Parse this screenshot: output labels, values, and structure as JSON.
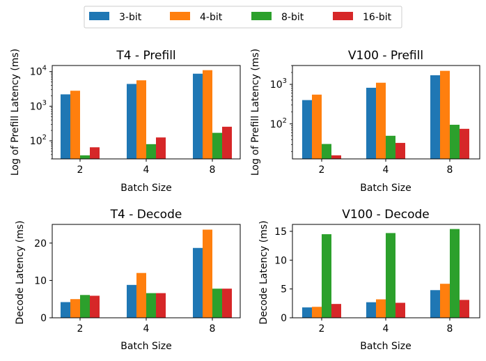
{
  "legend": {
    "entries": [
      {
        "name": "3-bit",
        "color": "#1f77b4"
      },
      {
        "name": "4-bit",
        "color": "#ff7f0e"
      },
      {
        "name": "8-bit",
        "color": "#2ca02c"
      },
      {
        "name": "16-bit",
        "color": "#d62728"
      }
    ]
  },
  "chart_data": [
    {
      "id": "t4-prefill",
      "type": "bar",
      "title": "T4 - Prefill",
      "xlabel": "Batch Size",
      "ylabel": "Log of Prefill Latency (ms)",
      "yscale": "log",
      "ylim": [
        30,
        15000
      ],
      "categories": [
        "2",
        "4",
        "8"
      ],
      "series": [
        {
          "name": "3-bit",
          "values": [
            2200,
            4400,
            8700
          ]
        },
        {
          "name": "4-bit",
          "values": [
            2800,
            5600,
            11000
          ]
        },
        {
          "name": "8-bit",
          "values": [
            38,
            80,
            170
          ]
        },
        {
          "name": "16-bit",
          "values": [
            65,
            125,
            255
          ]
        }
      ]
    },
    {
      "id": "v100-prefill",
      "type": "bar",
      "title": "V100 - Prefill",
      "xlabel": "Batch Size",
      "ylabel": "Log of Prefill Latency (ms)",
      "yscale": "log",
      "ylim": [
        13,
        3000
      ],
      "categories": [
        "2",
        "4",
        "8"
      ],
      "series": [
        {
          "name": "3-bit",
          "values": [
            400,
            820,
            1700
          ]
        },
        {
          "name": "4-bit",
          "values": [
            550,
            1100,
            2200
          ]
        },
        {
          "name": "8-bit",
          "values": [
            31,
            50,
            95
          ]
        },
        {
          "name": "16-bit",
          "values": [
            16,
            33,
            75
          ]
        }
      ]
    },
    {
      "id": "t4-decode",
      "type": "bar",
      "title": "T4 - Decode",
      "xlabel": "Batch Size",
      "ylabel": "Decode Latency (ms)",
      "yscale": "linear",
      "ylim": [
        0,
        25
      ],
      "yticks": [
        0,
        10,
        20
      ],
      "categories": [
        "2",
        "4",
        "8"
      ],
      "series": [
        {
          "name": "3-bit",
          "values": [
            4.2,
            8.8,
            18.7
          ]
        },
        {
          "name": "4-bit",
          "values": [
            5.0,
            12.0,
            23.6
          ]
        },
        {
          "name": "8-bit",
          "values": [
            6.1,
            6.6,
            7.8
          ]
        },
        {
          "name": "16-bit",
          "values": [
            5.9,
            6.6,
            7.8
          ]
        }
      ]
    },
    {
      "id": "v100-decode",
      "type": "bar",
      "title": "V100 - Decode",
      "xlabel": "Batch Size",
      "ylabel": "Decode Latency (ms)",
      "yscale": "linear",
      "ylim": [
        0,
        16.2
      ],
      "yticks": [
        0,
        5,
        10,
        15
      ],
      "categories": [
        "2",
        "4",
        "8"
      ],
      "series": [
        {
          "name": "3-bit",
          "values": [
            1.8,
            2.7,
            4.8
          ]
        },
        {
          "name": "4-bit",
          "values": [
            1.9,
            3.2,
            5.9
          ]
        },
        {
          "name": "8-bit",
          "values": [
            14.5,
            14.7,
            15.4
          ]
        },
        {
          "name": "16-bit",
          "values": [
            2.4,
            2.6,
            3.1
          ]
        }
      ]
    }
  ]
}
